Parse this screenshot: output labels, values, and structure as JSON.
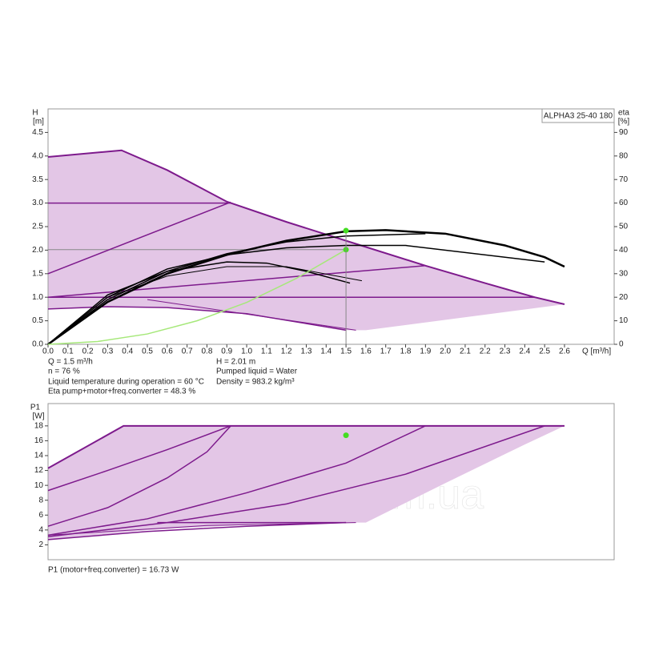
{
  "chart_data": [
    {
      "type": "line",
      "title": "ALPHA3 25-40 180",
      "ylabel": "H",
      "yunit": "[m]",
      "y2label": "eta",
      "y2unit": "[%]",
      "xlabel": "Q [m³/h]",
      "xlim": [
        0,
        2.85
      ],
      "ylim": [
        0,
        5
      ],
      "y2lim": [
        0,
        100
      ],
      "xticks": [
        {
          "value": 0,
          "label": "0.0"
        },
        0.1,
        0.2,
        0.3,
        0.4,
        0.5,
        0.6,
        0.7,
        0.8,
        0.9,
        {
          "value": 1,
          "label": "1.0"
        },
        1.1,
        1.2,
        1.3,
        1.4,
        1.5,
        1.6,
        1.7,
        1.8,
        1.9,
        {
          "value": 2,
          "label": "2.0"
        },
        2.1,
        2.2,
        2.3,
        2.4,
        2.5,
        2.6
      ],
      "yticks": [
        {
          "value": 0,
          "label": "0.0"
        },
        0.5,
        {
          "value": 1,
          "label": "1.0"
        },
        1.5,
        {
          "value": 2,
          "label": "2.0"
        },
        2.5,
        {
          "value": 3,
          "label": "3.0"
        },
        3.5,
        {
          "value": 4,
          "label": "4.0"
        },
        4.5
      ],
      "y2ticks": [
        0,
        10,
        20,
        30,
        40,
        50,
        60,
        70,
        80,
        90
      ],
      "areas": [
        {
          "color": "#e3c6e6",
          "x": [
            0,
            0.37,
            0.6,
            0.9,
            1.2,
            1.5,
            1.9,
            2.2,
            2.45,
            2.6,
            1.6,
            1.5,
            1.0,
            0.6,
            0.3,
            0
          ],
          "values": [
            3.98,
            4.12,
            3.7,
            3.03,
            2.6,
            2.2,
            1.67,
            1.3,
            1.0,
            0.85,
            0.3,
            0.3,
            0.65,
            0.78,
            0.8,
            0.75
          ]
        }
      ],
      "series": [
        {
          "color": "#7d1a8c",
          "width": 2,
          "x": [
            0,
            0.37,
            0.6,
            0.9,
            1.2,
            1.5,
            1.9,
            2.2,
            2.45,
            2.6
          ],
          "values": [
            3.98,
            4.12,
            3.7,
            3.03,
            2.6,
            2.2,
            1.67,
            1.3,
            1.0,
            0.85
          ]
        },
        {
          "color": "#7d1a8c",
          "width": 1.5,
          "x": [
            0,
            0.92
          ],
          "values": [
            3.0,
            3.0
          ]
        },
        {
          "color": "#7d1a8c",
          "width": 1.5,
          "x": [
            0,
            0.92
          ],
          "values": [
            1.5,
            3.02
          ]
        },
        {
          "color": "#7d1a8c",
          "width": 1.5,
          "x": [
            0,
            2.45
          ],
          "values": [
            1.0,
            1.0
          ]
        },
        {
          "color": "#7d1a8c",
          "width": 1.5,
          "x": [
            0,
            1.9
          ],
          "values": [
            1.0,
            1.67
          ]
        },
        {
          "color": "#7d1a8c",
          "width": 1.5,
          "x": [
            0,
            0.3,
            0.6,
            1.0,
            1.5
          ],
          "values": [
            0.75,
            0.8,
            0.78,
            0.65,
            0.3
          ]
        },
        {
          "color": "#7d1a8c",
          "width": 1,
          "x": [
            0.5,
            1.55
          ],
          "values": [
            0.95,
            0.3
          ]
        },
        {
          "color": "#000000",
          "width": 2.5,
          "axis": "y2",
          "x": [
            0,
            0.3,
            0.6,
            0.9,
            1.2,
            1.5,
            1.7,
            2.0,
            2.3,
            2.5,
            2.6
          ],
          "values": [
            0,
            18,
            30,
            38,
            44,
            48,
            48.5,
            47,
            42,
            37,
            33
          ]
        },
        {
          "color": "#000000",
          "width": 1.5,
          "axis": "y2",
          "x": [
            0,
            0.3,
            0.6,
            0.9,
            1.2,
            1.5,
            1.9
          ],
          "values": [
            0,
            19,
            31,
            38.5,
            43.5,
            46,
            47
          ]
        },
        {
          "color": "#000000",
          "width": 1.5,
          "axis": "y2",
          "x": [
            0,
            0.3,
            0.6,
            0.9,
            1.2,
            1.5,
            1.8,
            2.5
          ],
          "values": [
            0,
            20,
            32,
            38,
            41,
            42,
            42,
            35
          ]
        },
        {
          "color": "#000000",
          "width": 1.5,
          "axis": "y2",
          "x": [
            0,
            0.3,
            0.6,
            0.9,
            1.1,
            1.3,
            1.52
          ],
          "values": [
            0,
            21,
            31,
            35,
            34.5,
            31,
            26
          ]
        },
        {
          "color": "#000000",
          "width": 1,
          "axis": "y2",
          "x": [
            0,
            0.3,
            0.6,
            0.9,
            1.2,
            1.58
          ],
          "values": [
            0,
            20,
            29,
            33,
            33,
            27
          ]
        },
        {
          "color": "#a6e87a",
          "width": 1.5,
          "x": [
            0,
            0.25,
            0.5,
            0.75,
            1.0,
            1.25,
            1.5
          ],
          "values": [
            0,
            0.06,
            0.22,
            0.5,
            0.89,
            1.4,
            2.01
          ]
        }
      ],
      "points": [
        {
          "color": "#44dd22",
          "x": 1.5,
          "value": 2.01
        },
        {
          "color": "#44dd22",
          "x": 1.5,
          "value": 48.3,
          "axis": "y2"
        }
      ],
      "annotations": [
        "Q = 1.5 m³/h",
        "n = 76 %",
        "Liquid temperature during operation = 60 °C",
        "Eta pump+motor+freq.converter = 48.3 %",
        "H = 2.01 m",
        "Pumped liquid = Water",
        "Density = 983.2 kg/m³"
      ]
    },
    {
      "type": "line",
      "ylabel": "P1",
      "yunit": "[W]",
      "watermark": "aqualo.com.ua",
      "xlim": [
        0,
        2.85
      ],
      "ylim": [
        0,
        21
      ],
      "yticks": [
        2,
        4,
        6,
        8,
        10,
        12,
        14,
        16,
        18
      ],
      "areas": [
        {
          "color": "#e3c6e6",
          "x": [
            0,
            0.38,
            2.6,
            2.4,
            2.0,
            1.6,
            1.5,
            1.0,
            0.5,
            0
          ],
          "values": [
            12.3,
            18,
            18,
            15.5,
            10.3,
            5,
            5,
            4.7,
            4,
            2.6
          ]
        }
      ],
      "series": [
        {
          "color": "#7d1a8c",
          "width": 2,
          "x": [
            0,
            0.38,
            2.6
          ],
          "values": [
            12.3,
            18,
            18
          ]
        },
        {
          "color": "#7d1a8c",
          "width": 1.5,
          "x": [
            0,
            0.3,
            0.6,
            0.92
          ],
          "values": [
            9.3,
            12,
            14.8,
            18
          ]
        },
        {
          "color": "#7d1a8c",
          "width": 1.5,
          "x": [
            0,
            0.3,
            0.6,
            0.8,
            0.92
          ],
          "values": [
            4.5,
            7,
            11,
            14.5,
            18
          ]
        },
        {
          "color": "#7d1a8c",
          "width": 1.5,
          "x": [
            0,
            0.5,
            1.0,
            1.5,
            1.9
          ],
          "values": [
            3.3,
            5.5,
            9,
            13,
            18
          ]
        },
        {
          "color": "#7d1a8c",
          "width": 1.5,
          "x": [
            0,
            0.6,
            1.2,
            1.8,
            2.5
          ],
          "values": [
            3.1,
            5,
            7.5,
            11.5,
            18
          ]
        },
        {
          "color": "#7d1a8c",
          "width": 1,
          "x": [
            0,
            0.8,
            1.55
          ],
          "values": [
            3.3,
            4.6,
            5
          ]
        },
        {
          "color": "#7d1a8c",
          "width": 1.5,
          "x": [
            0,
            0.5,
            1.0,
            1.5
          ],
          "values": [
            2.7,
            3.8,
            4.5,
            5
          ]
        },
        {
          "color": "#7d1a8c",
          "width": 1.5,
          "x": [
            0.55,
            1.5
          ],
          "values": [
            5,
            5
          ]
        }
      ],
      "points": [
        {
          "color": "#44dd22",
          "x": 1.5,
          "value": 16.73
        }
      ],
      "annotations": [
        "P1 (motor+freq.converter) = 16.73 W"
      ]
    }
  ]
}
